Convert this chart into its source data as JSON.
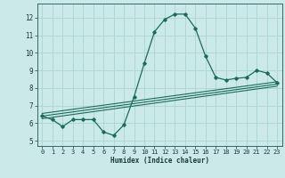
{
  "title": "",
  "xlabel": "Humidex (Indice chaleur)",
  "background_color": "#cce9e9",
  "grid_color": "#aad4d4",
  "line_color": "#1a6b5a",
  "xlim": [
    -0.5,
    23.5
  ],
  "ylim": [
    4.7,
    12.8
  ],
  "yticks": [
    5,
    6,
    7,
    8,
    9,
    10,
    11,
    12
  ],
  "xticks": [
    0,
    1,
    2,
    3,
    4,
    5,
    6,
    7,
    8,
    9,
    10,
    11,
    12,
    13,
    14,
    15,
    16,
    17,
    18,
    19,
    20,
    21,
    22,
    23
  ],
  "curve1_x": [
    0,
    1,
    2,
    3,
    4,
    5,
    6,
    7,
    8,
    9,
    10,
    11,
    12,
    13,
    14,
    15,
    16,
    17,
    18,
    19,
    20,
    21,
    22,
    23
  ],
  "curve1_y": [
    6.4,
    6.2,
    5.8,
    6.2,
    6.2,
    6.2,
    5.5,
    5.3,
    5.9,
    7.5,
    9.4,
    11.2,
    11.9,
    12.2,
    12.2,
    11.4,
    9.8,
    8.6,
    8.45,
    8.55,
    8.6,
    9.0,
    8.85,
    8.3
  ],
  "line1_x": [
    0,
    23
  ],
  "line1_y": [
    6.25,
    8.1
  ],
  "line2_x": [
    0,
    23
  ],
  "line2_y": [
    6.55,
    8.35
  ],
  "line3_x": [
    0,
    23
  ],
  "line3_y": [
    6.4,
    8.22
  ]
}
